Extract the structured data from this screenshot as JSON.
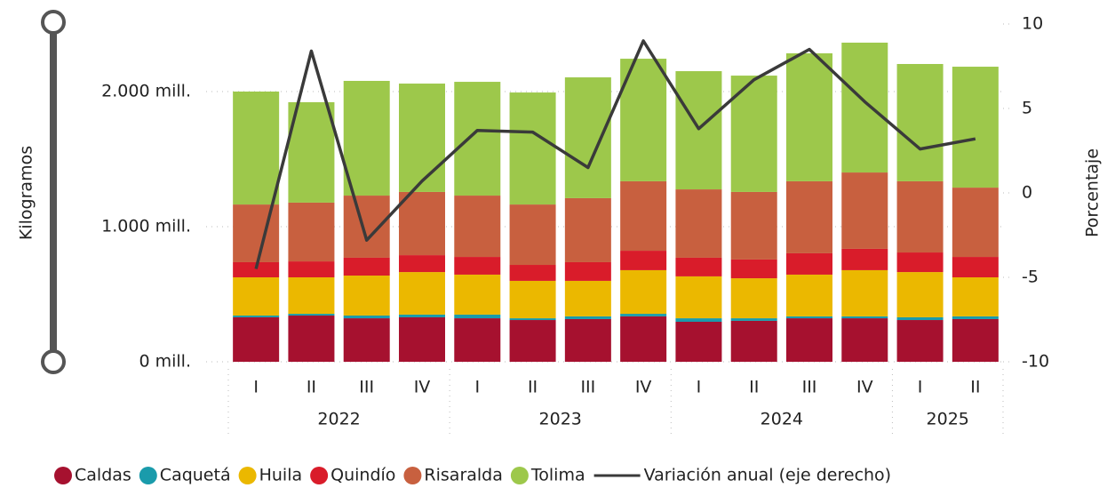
{
  "chart_data": {
    "type": "stacked_bar_line",
    "y_label": "Kilogramos",
    "y2_label": "Porcentaje",
    "categories": [
      "I",
      "II",
      "III",
      "IV",
      "I",
      "II",
      "III",
      "IV",
      "I",
      "II",
      "III",
      "IV",
      "I",
      "II"
    ],
    "year_groups": [
      {
        "name": "2022",
        "count": 4
      },
      {
        "name": "2023",
        "count": 4
      },
      {
        "name": "2024",
        "count": 4
      },
      {
        "name": "2025",
        "count": 2
      }
    ],
    "ylim": [
      0,
      2500
    ],
    "yticks": [
      {
        "value": 0,
        "label": "0 mill."
      },
      {
        "value": 1000,
        "label": "1.000 mill."
      },
      {
        "value": 2000,
        "label": "2.000 mill."
      }
    ],
    "y2lim": [
      -10,
      10
    ],
    "y2ticks": [
      10,
      5,
      0,
      -5,
      -10
    ],
    "grid": true,
    "series": [
      {
        "name": "Caldas",
        "color": "#a6112f",
        "values": [
          329,
          342,
          322,
          329,
          322,
          309,
          316,
          336,
          296,
          303,
          322,
          322,
          309,
          316
        ]
      },
      {
        "name": "Caquetá",
        "color": "#1a9bab",
        "values": [
          13,
          13,
          20,
          20,
          27,
          13,
          20,
          19,
          26,
          19,
          14,
          14,
          20,
          20
        ]
      },
      {
        "name": "Huila",
        "color": "#ebb800",
        "values": [
          283,
          270,
          296,
          315,
          296,
          277,
          263,
          323,
          310,
          296,
          309,
          342,
          335,
          289
        ]
      },
      {
        "name": "Quindío",
        "color": "#d91c2a",
        "values": [
          112,
          118,
          132,
          125,
          131,
          118,
          138,
          144,
          138,
          139,
          158,
          158,
          145,
          151
        ]
      },
      {
        "name": "Risaralda",
        "color": "#c8603f",
        "values": [
          427,
          435,
          460,
          468,
          454,
          447,
          474,
          514,
          506,
          500,
          533,
          565,
          527,
          513
        ]
      },
      {
        "name": "Tolima",
        "color": "#9dc84b",
        "values": [
          836,
          743,
          849,
          802,
          842,
          829,
          894,
          907,
          875,
          861,
          947,
          961,
          868,
          895
        ]
      },
      {
        "name": "Variación anual (eje derecho)",
        "color": "#3a3a3a",
        "type": "line",
        "axis": "y2",
        "values": [
          -4.5,
          8.4,
          -2.8,
          0.7,
          3.7,
          3.6,
          1.5,
          9.0,
          3.8,
          6.7,
          8.5,
          5.4,
          2.6,
          3.2
        ]
      }
    ]
  }
}
